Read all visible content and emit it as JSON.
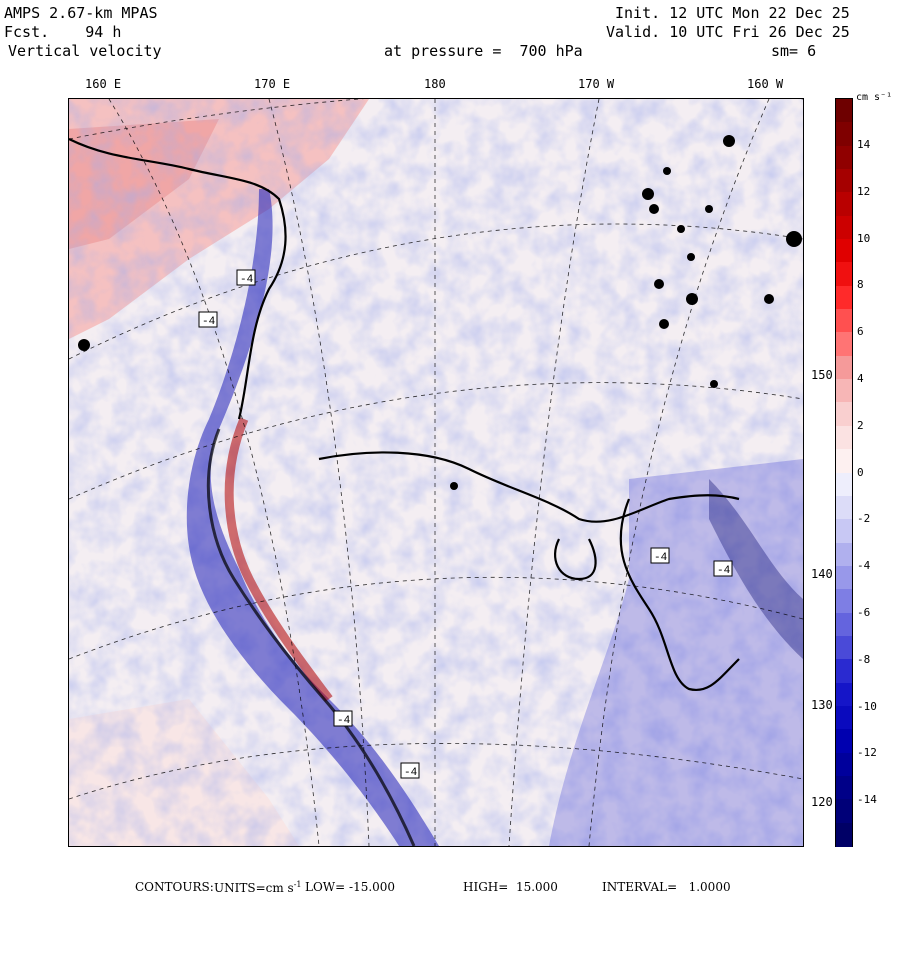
{
  "header": {
    "model": "AMPS 2.67-km MPAS",
    "forecast": "Fcst.    94 h",
    "field": "Vertical velocity",
    "init": "Init. 12 UTC Mon 22 Dec 25",
    "valid": "Valid. 10 UTC Fri 26 Dec 25",
    "pressure": "at pressure =  700 hPa",
    "smoothing": "sm= 6"
  },
  "longitude_labels": [
    "160 E",
    "170 E",
    "180",
    "170 W",
    "160 W"
  ],
  "latitude_labels": [
    "150 W",
    "140 W",
    "130 W",
    "120 W"
  ],
  "colorbar": {
    "unit": "cm s⁻¹",
    "tick_labels": [
      "14",
      "12",
      "10",
      "8",
      "6",
      "4",
      "2",
      "0",
      "-2",
      "-4",
      "-6",
      "-8",
      "-10",
      "-12",
      "-14"
    ],
    "colors_top_to_bottom": [
      "#6e0000",
      "#7f0000",
      "#900000",
      "#a50000",
      "#b90000",
      "#cc0000",
      "#e00000",
      "#f01010",
      "#ff2a2a",
      "#ff5050",
      "#ff7474",
      "#f59a9a",
      "#f7b6b6",
      "#f9cfcf",
      "#fbe2e2",
      "#fdf0f0",
      "#eeeefc",
      "#dcdcf8",
      "#c8c8f4",
      "#b0b0ee",
      "#9898ea",
      "#7e7ee4",
      "#6464de",
      "#4a4ad8",
      "#2a2ad0",
      "#1515c8",
      "#0a0abe",
      "#0000b0",
      "#00009c",
      "#000088",
      "#000078",
      "#000066"
    ]
  },
  "map_labels": [
    "-4",
    "-4",
    "-4",
    "-4",
    "-4",
    "-4"
  ],
  "footer": {
    "contours": "CONTOURS:",
    "units_prefix": "UNITS=cm s",
    "units_exp": "-1",
    "low": "LOW= -15.000",
    "high": "HIGH=  15.000",
    "interval": "INTERVAL=   1.0000"
  }
}
